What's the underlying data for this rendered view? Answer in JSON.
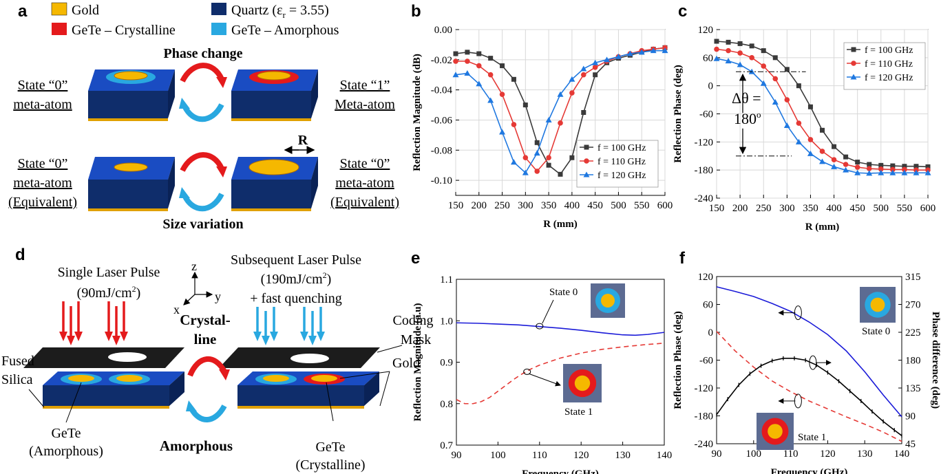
{
  "colors": {
    "gold": "#f5b800",
    "gold_edge": "#d08a00",
    "quartz": "#0f2d6b",
    "quartz_top": "#1a4cc2",
    "gete_crystalline": "#e41a1c",
    "gete_amorphous": "#29a8e0",
    "black_curve": "#3a3a3a",
    "red_curve": "#e53935",
    "blue_curve": "#1f78e0",
    "inset_bg": "#5c6b92"
  },
  "panel_a": {
    "label": "a",
    "legend": {
      "gold": "Gold",
      "quartz_main": "Quartz (ε",
      "quartz_sub": "r",
      "quartz_tail": " = 3.55)",
      "gete_cryst": "GeTe – Crystalline",
      "gete_amor": "GeTe – Amorphous"
    },
    "phase_change": "Phase change",
    "size_variation": "Size variation",
    "top_left_l1": "State “0”",
    "top_left_l2": "meta-atom",
    "top_right_l1": "State “1”",
    "top_right_l2": "Meta-atom",
    "bot_left_l1": "State “0”",
    "bot_left_l2": "meta-atom",
    "bot_left_l3": "(Equivalent)",
    "bot_right_l1": "State “0”",
    "bot_right_l2": "meta-atom",
    "bot_right_l3": "(Equivalent)",
    "r_label": "R"
  },
  "panel_d": {
    "label": "d",
    "single_pulse_l1": "Single Laser Pulse",
    "single_pulse_l2": "(90mJ/cm",
    "single_pulse_sup": "2",
    "single_pulse_l2_tail": ")",
    "subseq_l1": "Subsequent Laser Pulse",
    "subseq_l2": "(190mJ/cm",
    "subseq_sup": "2",
    "subseq_l2_tail": ")",
    "subseq_l3": "+ fast quenching",
    "axis_z": "z",
    "axis_y": "y",
    "axis_x": "x",
    "crystalline_l1": "Crystal-",
    "crystalline_l2": "line",
    "amorphous": "Amorphous",
    "coding_l1": "Coding",
    "coding_l2": "Mask",
    "gold": "Gold",
    "fused_l1": "Fused",
    "fused_l2": "Silica",
    "gete_amor_l1": "GeTe",
    "gete_amor_l2": "(Amorphous)",
    "gete_cryst_l1": "GeTe",
    "gete_cryst_l2": "(Crystalline)"
  },
  "chart_data": [
    {
      "panel": "b",
      "type": "line",
      "xlabel": "R (mm)",
      "ylabel": "Reflection Magnitude (dB)",
      "xlim": [
        150,
        600
      ],
      "ylim": [
        -0.11,
        0
      ],
      "xticks": [
        150,
        200,
        250,
        300,
        350,
        400,
        450,
        500,
        550,
        600
      ],
      "yticks": [
        -0.1,
        -0.08,
        -0.06,
        -0.04,
        -0.02,
        0.0
      ],
      "ytick_labels": [
        "-0.10",
        "-0.08",
        "-0.06",
        "-0.04",
        "-0.02",
        "0.00"
      ],
      "legend_position": "bottom-right",
      "series": [
        {
          "name": "f = 100 GHz",
          "color": "#3a3a3a",
          "marker": "square",
          "x": [
            150,
            175,
            200,
            225,
            250,
            275,
            300,
            325,
            350,
            375,
            400,
            425,
            450,
            475,
            500,
            525,
            550,
            575,
            600
          ],
          "y": [
            -0.016,
            -0.015,
            -0.016,
            -0.019,
            -0.024,
            -0.033,
            -0.05,
            -0.075,
            -0.09,
            -0.096,
            -0.085,
            -0.055,
            -0.03,
            -0.022,
            -0.019,
            -0.017,
            -0.015,
            -0.013,
            -0.012
          ]
        },
        {
          "name": "f = 110 GHz",
          "color": "#e53935",
          "marker": "circle",
          "x": [
            150,
            175,
            200,
            225,
            250,
            275,
            300,
            325,
            350,
            375,
            400,
            425,
            450,
            475,
            500,
            525,
            550,
            575,
            600
          ],
          "y": [
            -0.021,
            -0.021,
            -0.024,
            -0.03,
            -0.043,
            -0.063,
            -0.085,
            -0.094,
            -0.085,
            -0.062,
            -0.042,
            -0.03,
            -0.025,
            -0.021,
            -0.018,
            -0.016,
            -0.014,
            -0.013,
            -0.012
          ]
        },
        {
          "name": "f = 120 GHz",
          "color": "#1f78e0",
          "marker": "triangle",
          "x": [
            150,
            175,
            200,
            225,
            250,
            275,
            300,
            325,
            350,
            375,
            400,
            425,
            450,
            475,
            500,
            525,
            550,
            575,
            600
          ],
          "y": [
            -0.03,
            -0.029,
            -0.036,
            -0.047,
            -0.068,
            -0.088,
            -0.095,
            -0.082,
            -0.06,
            -0.043,
            -0.033,
            -0.026,
            -0.022,
            -0.02,
            -0.018,
            -0.016,
            -0.015,
            -0.014,
            -0.014
          ]
        }
      ]
    },
    {
      "panel": "c",
      "type": "line",
      "xlabel": "R (mm)",
      "ylabel": "Reflection Phase (deg)",
      "xlim": [
        150,
        600
      ],
      "ylim": [
        -240,
        120
      ],
      "xticks": [
        150,
        200,
        250,
        300,
        350,
        400,
        450,
        500,
        550,
        600
      ],
      "yticks": [
        -240,
        -180,
        -120,
        -60,
        0,
        60,
        120
      ],
      "legend_position": "top-right",
      "annotation_l1": "Δθ =",
      "annotation_l2": "180",
      "annotation_sup": "o",
      "annotation_upper_y": 30,
      "annotation_lower_y": -150,
      "series": [
        {
          "name": "f = 100 GHz",
          "color": "#3a3a3a",
          "marker": "square",
          "x": [
            150,
            175,
            200,
            225,
            250,
            275,
            300,
            325,
            350,
            375,
            400,
            425,
            450,
            475,
            500,
            525,
            550,
            575,
            600
          ],
          "y": [
            95,
            93,
            90,
            85,
            75,
            60,
            35,
            0,
            -45,
            -95,
            -130,
            -152,
            -163,
            -168,
            -170,
            -171,
            -172,
            -172,
            -173
          ]
        },
        {
          "name": "f = 110 GHz",
          "color": "#e53935",
          "marker": "circle",
          "x": [
            150,
            175,
            200,
            225,
            250,
            275,
            300,
            325,
            350,
            375,
            400,
            425,
            450,
            475,
            500,
            525,
            550,
            575,
            600
          ],
          "y": [
            78,
            75,
            70,
            60,
            42,
            15,
            -30,
            -80,
            -115,
            -140,
            -158,
            -168,
            -174,
            -177,
            -178,
            -179,
            -179,
            -180,
            -180
          ]
        },
        {
          "name": "f = 120 GHz",
          "color": "#1f78e0",
          "marker": "triangle",
          "x": [
            150,
            175,
            200,
            225,
            250,
            275,
            300,
            325,
            350,
            375,
            400,
            425,
            450,
            475,
            500,
            525,
            550,
            575,
            600
          ],
          "y": [
            58,
            53,
            45,
            30,
            5,
            -35,
            -85,
            -120,
            -145,
            -162,
            -173,
            -180,
            -186,
            -187,
            -186,
            -186,
            -186,
            -186,
            -186
          ]
        }
      ]
    },
    {
      "panel": "e",
      "type": "line",
      "xlabel": "Frequency (GHz)",
      "ylabel": "Reflection Magnitude (a.u)",
      "xlim": [
        90,
        140
      ],
      "ylim": [
        0.7,
        1.1
      ],
      "xticks": [
        90,
        100,
        110,
        120,
        130,
        140
      ],
      "yticks": [
        0.7,
        0.8,
        0.9,
        1.0,
        1.1
      ],
      "ytick_labels": [
        "0.7",
        "0.8",
        "0.9",
        "1.0",
        "1.1"
      ],
      "inset_state0": "State 0",
      "inset_state1": "State 1",
      "series": [
        {
          "name": "State 0",
          "color": "#1a1ad8",
          "dash": "solid",
          "x": [
            90,
            95,
            100,
            105,
            110,
            115,
            120,
            125,
            130,
            133,
            136,
            140
          ],
          "y": [
            0.995,
            0.994,
            0.992,
            0.99,
            0.986,
            0.982,
            0.977,
            0.971,
            0.966,
            0.965,
            0.967,
            0.972
          ]
        },
        {
          "name": "State 1",
          "color": "#e53935",
          "dash": "dashed",
          "x": [
            90,
            92,
            94,
            96,
            98,
            100,
            102,
            104,
            106,
            108,
            110,
            115,
            120,
            125,
            130,
            135,
            140
          ],
          "y": [
            0.81,
            0.8,
            0.8,
            0.805,
            0.815,
            0.83,
            0.845,
            0.86,
            0.873,
            0.884,
            0.893,
            0.91,
            0.922,
            0.931,
            0.937,
            0.942,
            0.946
          ]
        }
      ]
    },
    {
      "panel": "f",
      "type": "line",
      "xlabel": "Frequency (GHz)",
      "ylabel": "Reflection Phase (deg)",
      "ylabel_right": "Phase difference (deg)",
      "xlim": [
        90,
        140
      ],
      "ylim": [
        -240,
        120
      ],
      "ylim_right": [
        45,
        315
      ],
      "xticks": [
        90,
        100,
        110,
        120,
        130,
        140
      ],
      "yticks": [
        -240,
        -180,
        -120,
        -60,
        0,
        60,
        120
      ],
      "yticks_right": [
        45,
        90,
        135,
        180,
        225,
        270,
        315
      ],
      "inset_state0": "State 0",
      "inset_state1": "State 1",
      "series": [
        {
          "name": "State 0 phase",
          "color": "#1a1ad8",
          "dash": "solid",
          "axis": "left",
          "x": [
            90,
            95,
            100,
            105,
            110,
            115,
            120,
            125,
            130,
            135,
            140
          ],
          "y": [
            98,
            88,
            77,
            62,
            45,
            22,
            -5,
            -40,
            -85,
            -135,
            -182
          ]
        },
        {
          "name": "State 1 phase",
          "color": "#e53935",
          "dash": "dashed",
          "axis": "left",
          "x": [
            90,
            95,
            100,
            105,
            110,
            115,
            120,
            125,
            130,
            135,
            140
          ],
          "y": [
            2,
            -40,
            -75,
            -105,
            -128,
            -148,
            -165,
            -182,
            -198,
            -215,
            -235
          ]
        },
        {
          "name": "Phase difference",
          "color": "#000000",
          "dash": "solid",
          "axis": "right",
          "marker": "tick",
          "x": [
            90,
            93,
            96,
            99,
            102,
            105,
            108,
            111,
            114,
            117,
            120,
            123,
            126,
            129,
            132,
            135,
            138,
            140
          ],
          "y": [
            92,
            117,
            140,
            158,
            171,
            179,
            183,
            183,
            180,
            172,
            160,
            146,
            130,
            114,
            97,
            81,
            67,
            58
          ]
        }
      ]
    }
  ]
}
